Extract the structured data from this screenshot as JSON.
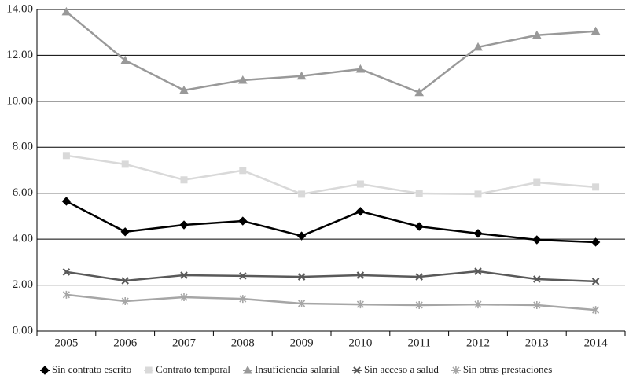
{
  "chart_data": {
    "type": "line",
    "categories": [
      "2005",
      "2006",
      "2007",
      "2008",
      "2009",
      "2010",
      "2011",
      "2012",
      "2013",
      "2014"
    ],
    "series": [
      {
        "name": "Sin contrato escrito",
        "color": "#000000",
        "marker": "diamond",
        "values": [
          5.65,
          4.32,
          4.62,
          4.79,
          4.14,
          5.21,
          4.55,
          4.25,
          3.97,
          3.87
        ]
      },
      {
        "name": "Contrato temporal",
        "color": "#d9d9d9",
        "marker": "square",
        "values": [
          7.64,
          7.26,
          6.58,
          6.99,
          5.96,
          6.4,
          5.99,
          5.96,
          6.47,
          6.27
        ]
      },
      {
        "name": "Insuficiencia salarial",
        "color": "#999999",
        "marker": "triangle",
        "values": [
          13.9,
          11.78,
          10.48,
          10.92,
          11.1,
          11.4,
          10.38,
          12.36,
          12.88,
          13.05
        ]
      },
      {
        "name": "Sin acceso a salud",
        "color": "#595959",
        "marker": "x",
        "values": [
          2.57,
          2.19,
          2.43,
          2.4,
          2.36,
          2.43,
          2.36,
          2.6,
          2.26,
          2.16
        ]
      },
      {
        "name": "Sin otras prestaciones",
        "color": "#a6a6a6",
        "marker": "star",
        "values": [
          1.58,
          1.3,
          1.47,
          1.4,
          1.2,
          1.16,
          1.13,
          1.16,
          1.13,
          0.92
        ]
      }
    ],
    "ylim": [
      0,
      14
    ],
    "yticks": [
      {
        "value": 0,
        "label": "0.00"
      },
      {
        "value": 2,
        "label": "2.00"
      },
      {
        "value": 4,
        "label": "4.00"
      },
      {
        "value": 6,
        "label": "6.00"
      },
      {
        "value": 8,
        "label": "8.00"
      },
      {
        "value": 10,
        "label": "10.00"
      },
      {
        "value": 12,
        "label": "12.00"
      },
      {
        "value": 14,
        "label": "14.00"
      }
    ],
    "grid": true,
    "legend": "bottom"
  }
}
